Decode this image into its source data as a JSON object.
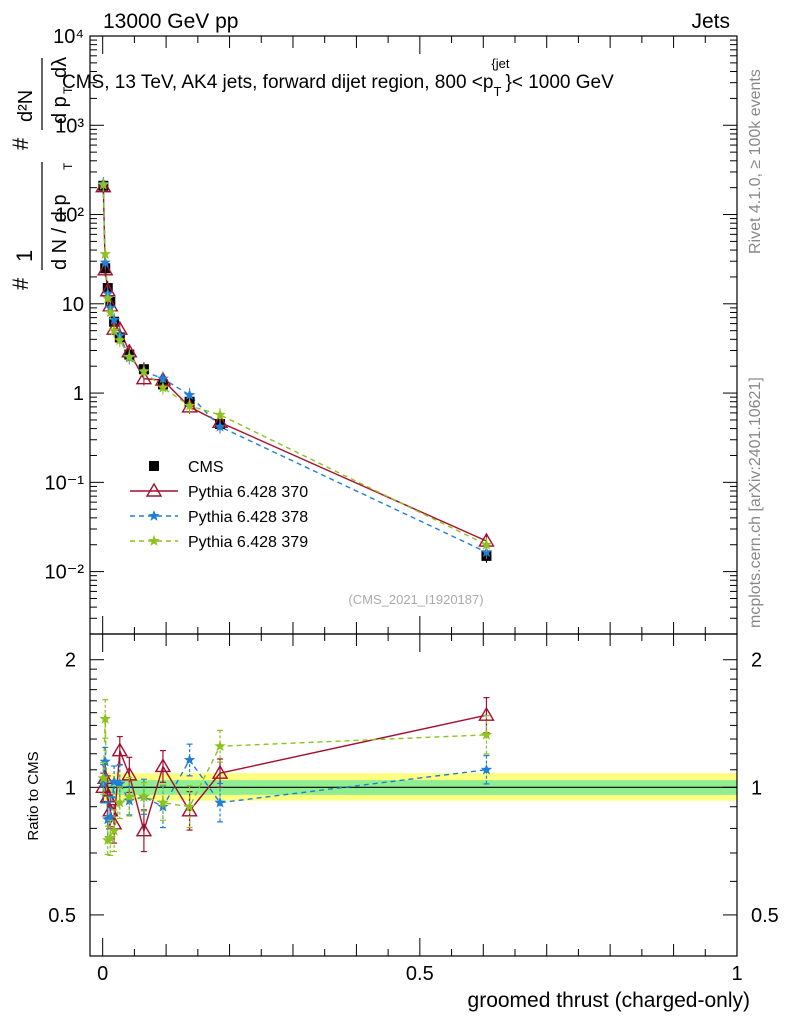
{
  "header": {
    "left": "13000 GeV pp",
    "right": "Jets"
  },
  "side_labels": {
    "rivet": "Rivet 4.1.0, ≥ 100k events",
    "mcplots": "mcplots.cern.ch [arXiv:2401.10621]"
  },
  "chart_data": [
    {
      "type": "line",
      "panel": "main",
      "title": "CMS, 13 TeV, AK4 jets, forward dijet region, 800 <p_T^{jet}< 1000 GeV",
      "title_parts": {
        "prefix": "CMS, 13 TeV, AK4 jets, forward dijet region, 800 <p",
        "sub": "T",
        "sup": "{jet",
        "suffix": "}< 1000 GeV"
      },
      "ylabel": "1/(dN/dp_T) d²N/(dp_T dλ)",
      "ylabel_parts": {
        "numer1": "1",
        "denom1": "d N / d p",
        "numer2": "d²N",
        "denom2": "d p",
        "dl": "dλ",
        "sub": "T",
        "hash": "#"
      },
      "yscale": "log",
      "ylim": [
        0.002,
        10000
      ],
      "xlim": [
        -0.02,
        1.0
      ],
      "y_tick_labels": [
        "10⁻²",
        "10⁻¹",
        "1",
        "10",
        "10²",
        "10³",
        "10⁴"
      ],
      "watermark": "(CMS_2021_I1920187)",
      "legend_position": "left, below middle",
      "series": [
        {
          "name": "CMS",
          "color": "#000000",
          "marker": "square",
          "x": [
            0.001,
            0.004,
            0.008,
            0.012,
            0.018,
            0.027,
            0.042,
            0.065,
            0.095,
            0.137,
            0.185,
            0.605
          ],
          "values": [
            210,
            25,
            15,
            10.5,
            6.3,
            4.2,
            2.7,
            1.85,
            1.25,
            0.8,
            0.45,
            0.015
          ]
        },
        {
          "name": "Pythia 6.428 370",
          "color": "#a30f2e",
          "marker": "triangle-open",
          "dash": "solid",
          "x": [
            0.001,
            0.004,
            0.008,
            0.012,
            0.018,
            0.027,
            0.042,
            0.065,
            0.095,
            0.137,
            0.185,
            0.605
          ],
          "values": [
            205,
            24,
            14,
            9.5,
            5.2,
            5.2,
            2.9,
            1.45,
            1.4,
            0.7,
            0.47,
            0.022
          ]
        },
        {
          "name": "Pythia 6.428 378",
          "color": "#1e7fd6",
          "marker": "star",
          "dash": "dashed",
          "x": [
            0.001,
            0.004,
            0.008,
            0.012,
            0.018,
            0.027,
            0.042,
            0.065,
            0.095,
            0.137,
            0.185,
            0.605
          ],
          "values": [
            220,
            29,
            13,
            9,
            6.6,
            4.4,
            2.5,
            1.75,
            1.45,
            0.95,
            0.42,
            0.0165
          ]
        },
        {
          "name": "Pythia 6.428 379",
          "color": "#8dc21f",
          "marker": "star",
          "dash": "dashed",
          "x": [
            0.001,
            0.004,
            0.008,
            0.012,
            0.018,
            0.027,
            0.042,
            0.065,
            0.095,
            0.137,
            0.185,
            0.605
          ],
          "values": [
            215,
            36,
            11.5,
            8,
            5,
            3.9,
            2.55,
            1.75,
            1.15,
            0.72,
            0.57,
            0.02
          ]
        }
      ]
    },
    {
      "type": "line",
      "panel": "ratio",
      "ylabel": "Ratio to CMS",
      "xlabel": "groomed thrust (charged-only)",
      "yscale": "log",
      "ylim": [
        0.4,
        2.3
      ],
      "xlim": [
        -0.02,
        1.0
      ],
      "x_tick_labels": [
        "0",
        "0.5",
        "1"
      ],
      "y_tick_labels": [
        "0.5",
        "1",
        "2"
      ],
      "bands": [
        {
          "label": "total uncertainty",
          "color": "#ffff80",
          "lo": 0.93,
          "hi": 1.08
        },
        {
          "label": "statistical uncertainty",
          "color": "#90ee90",
          "lo": 0.96,
          "hi": 1.04
        }
      ],
      "series": [
        {
          "name": "Pythia 6.428 370",
          "color": "#a30f2e",
          "x": [
            0.001,
            0.004,
            0.008,
            0.012,
            0.018,
            0.027,
            0.042,
            0.065,
            0.095,
            0.137,
            0.185,
            0.605
          ],
          "values": [
            1.0,
            1.05,
            0.95,
            0.88,
            0.82,
            1.22,
            1.07,
            0.79,
            1.12,
            0.88,
            1.08,
            1.48
          ]
        },
        {
          "name": "Pythia 6.428 378",
          "color": "#1e7fd6",
          "x": [
            0.001,
            0.004,
            0.008,
            0.012,
            0.018,
            0.027,
            0.042,
            0.065,
            0.095,
            0.137,
            0.185,
            0.605
          ],
          "values": [
            1.02,
            1.15,
            0.84,
            0.85,
            1.03,
            1.02,
            0.93,
            0.95,
            0.9,
            1.16,
            0.92,
            1.1
          ]
        },
        {
          "name": "Pythia 6.428 379",
          "color": "#8dc21f",
          "x": [
            0.001,
            0.004,
            0.008,
            0.012,
            0.018,
            0.027,
            0.042,
            0.065,
            0.095,
            0.137,
            0.185,
            0.605
          ],
          "values": [
            1.05,
            1.45,
            0.75,
            0.76,
            0.79,
            0.92,
            0.95,
            0.95,
            0.92,
            0.9,
            1.25,
            1.33
          ]
        }
      ]
    }
  ]
}
